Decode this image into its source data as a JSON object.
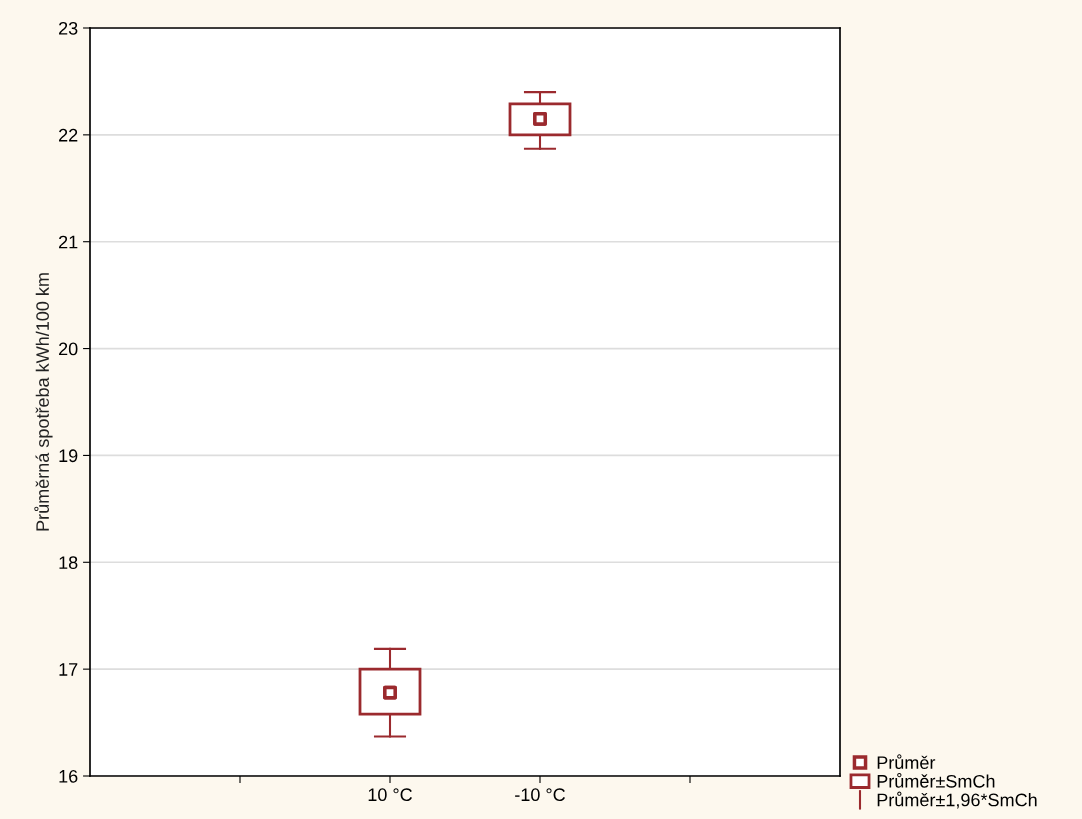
{
  "chart_data": {
    "type": "scatter",
    "ylabel": "Průměrná spotřeba kWh/100 km",
    "categories": [
      null,
      "10 °C",
      "-10 °C",
      null
    ],
    "ylim": [
      16,
      23
    ],
    "yticks": [
      16,
      17,
      18,
      19,
      20,
      21,
      22,
      23
    ],
    "grid": "y",
    "legend": "bottom right",
    "series": [
      {
        "name": "Průměr",
        "color": "#9b2a2e",
        "marker": "square",
        "values": [
          null,
          16.78,
          22.15,
          null
        ]
      },
      {
        "name": "Průměr±SmCh",
        "type": "bar",
        "color": "#9b2a2e",
        "base": [
          null,
          16.58,
          22.0,
          null
        ],
        "values": [
          null,
          0.42,
          0.29,
          null
        ]
      },
      {
        "name": "Průměr±1,96*SmCh",
        "type": "scatter",
        "color": "#9b2a2e",
        "marker": "square",
        "values": [
          null,
          16.78,
          22.15,
          null
        ],
        "errors": [
          null,
          [
            16.37,
            17.19
          ],
          [
            21.87,
            22.4
          ],
          null
        ]
      }
    ]
  }
}
